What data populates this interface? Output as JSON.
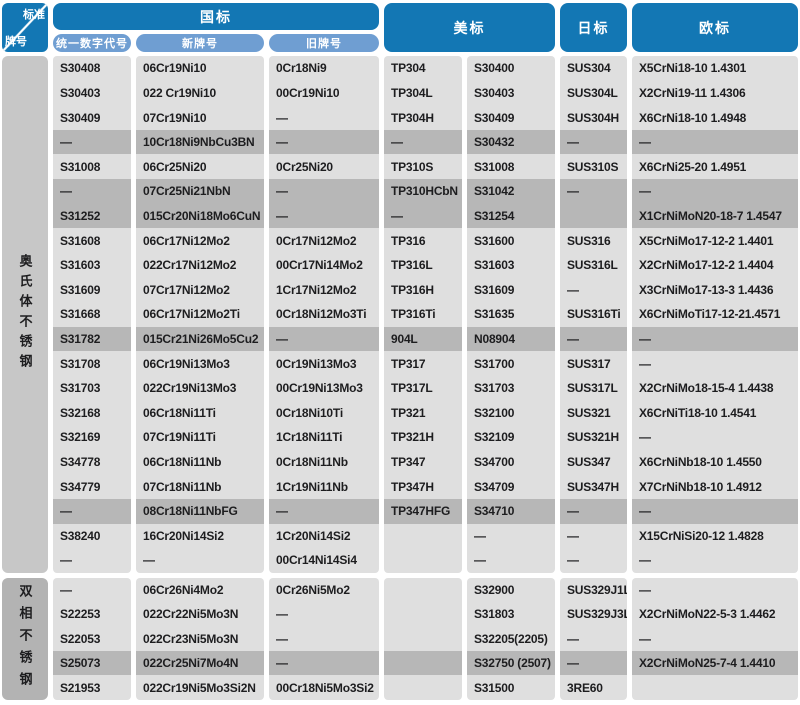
{
  "colors": {
    "header_blue": "#1377b4",
    "pill_blue": "#6f9ed2",
    "cell_light": "#dfdfdf",
    "cell_dark": "#b7b7b7",
    "label_austenitic": "#c7c7c7",
    "label_duplex": "#b3b3b3",
    "text": "#1d1d1f"
  },
  "header": {
    "corner": {
      "top_right": "标准",
      "bottom_left": "牌号"
    },
    "groups": [
      {
        "label": "国标",
        "sub": [
          "统一数字代号",
          "新牌号",
          "旧牌号"
        ]
      },
      {
        "label": "美标"
      },
      {
        "label": "日标"
      },
      {
        "label": "欧标"
      }
    ]
  },
  "sections": [
    {
      "label": "奥氏体不锈钢",
      "rows": [
        {
          "dark": false,
          "cells": [
            "S30408",
            "06Cr19Ni10",
            "0Cr18Ni9",
            "TP304",
            "S30400",
            "SUS304",
            "X5CrNi18-10 1.4301"
          ]
        },
        {
          "dark": false,
          "cells": [
            "S30403",
            "022 Cr19Ni10",
            "00Cr19Ni10",
            "TP304L",
            "S30403",
            "SUS304L",
            "X2CrNi19-11  1.4306"
          ]
        },
        {
          "dark": false,
          "cells": [
            "S30409",
            "07Cr19Ni10",
            "—",
            "TP304H",
            "S30409",
            "SUS304H",
            "X6CrNi18-10  1.4948"
          ]
        },
        {
          "dark": true,
          "cells": [
            "—",
            "10Cr18Ni9NbCu3BN",
            "—",
            "—",
            "S30432",
            "—",
            "—"
          ]
        },
        {
          "dark": false,
          "cells": [
            "S31008",
            "06Cr25Ni20",
            "0Cr25Ni20",
            "TP310S",
            "S31008",
            "SUS310S",
            "X6CrNi25-20 1.4951"
          ]
        },
        {
          "dark": true,
          "cells": [
            "—",
            "07Cr25Ni21NbN",
            "—",
            "TP310HCbN",
            "S31042",
            "—",
            "—"
          ]
        },
        {
          "dark": true,
          "cells": [
            "S31252",
            "015Cr20Ni18Mo6CuN",
            "—",
            "—",
            "S31254",
            "",
            "X1CrNiMoN20-18-7 1.4547"
          ]
        },
        {
          "dark": false,
          "cells": [
            "S31608",
            "06Cr17Ni12Mo2",
            "0Cr17Ni12Mo2",
            "TP316",
            "S31600",
            "SUS316",
            "X5CrNiMo17-12-2 1.4401"
          ]
        },
        {
          "dark": false,
          "cells": [
            "S31603",
            "022Cr17Ni12Mo2",
            "00Cr17Ni14Mo2",
            "TP316L",
            "S31603",
            "SUS316L",
            "X2CrNiMo17-12-2 1.4404"
          ]
        },
        {
          "dark": false,
          "cells": [
            "S31609",
            "07Cr17Ni12Mo2",
            "1Cr17Ni12Mo2",
            "TP316H",
            "S31609",
            "—",
            "X3CrNiMo17-13-3 1.4436"
          ]
        },
        {
          "dark": false,
          "cells": [
            "S31668",
            "06Cr17Ni12Mo2Ti",
            "0Cr18Ni12Mo3Ti",
            "TP316Ti",
            "S31635",
            "SUS316Ti",
            "X6CrNiMoTi17-12-21.4571"
          ]
        },
        {
          "dark": true,
          "cells": [
            "S31782",
            "015Cr21Ni26Mo5Cu2",
            "—",
            "904L",
            "N08904",
            "—",
            "—"
          ]
        },
        {
          "dark": false,
          "cells": [
            "S31708",
            "06Cr19Ni13Mo3",
            "0Cr19Ni13Mo3",
            "TP317",
            "S31700",
            "SUS317",
            "—"
          ]
        },
        {
          "dark": false,
          "cells": [
            "S31703",
            "022Cr19Ni13Mo3",
            "00Cr19Ni13Mo3",
            "TP317L",
            "S31703",
            "SUS317L",
            "X2CrNiMo18-15-4 1.4438"
          ]
        },
        {
          "dark": false,
          "cells": [
            "S32168",
            "06Cr18Ni11Ti",
            "0Cr18Ni10Ti",
            "TP321",
            "S32100",
            "SUS321",
            "X6CrNiTi18-10 1.4541"
          ]
        },
        {
          "dark": false,
          "cells": [
            "S32169",
            "07Cr19Ni11Ti",
            "1Cr18Ni11Ti",
            "TP321H",
            "S32109",
            "SUS321H",
            "—"
          ]
        },
        {
          "dark": false,
          "cells": [
            "S34778",
            "06Cr18Ni11Nb",
            "0Cr18Ni11Nb",
            "TP347",
            "S34700",
            "SUS347",
            "X6CrNiNb18-10 1.4550"
          ]
        },
        {
          "dark": false,
          "cells": [
            "S34779",
            "07Cr18Ni11Nb",
            "1Cr19Ni11Nb",
            "TP347H",
            "S34709",
            "SUS347H",
            "X7CrNiNb18-10 1.4912"
          ]
        },
        {
          "dark": true,
          "cells": [
            "—",
            "08Cr18Ni11NbFG",
            "—",
            "TP347HFG",
            "S34710",
            "—",
            "—"
          ]
        },
        {
          "dark": false,
          "cells": [
            "S38240",
            "16Cr20Ni14Si2",
            "1Cr20Ni14Si2",
            "",
            "—",
            "—",
            "X15CrNiSi20-12 1.4828"
          ]
        },
        {
          "dark": false,
          "cells": [
            "—",
            "—",
            "00Cr14Ni14Si4",
            "",
            "—",
            "—",
            "—"
          ]
        }
      ]
    },
    {
      "label": "双相不锈钢",
      "rows": [
        {
          "dark": false,
          "cells": [
            "—",
            "06Cr26Ni4Mo2",
            "0Cr26Ni5Mo2",
            "",
            "S32900",
            "SUS329J1L",
            "—"
          ]
        },
        {
          "dark": false,
          "cells": [
            "S22253",
            "022Cr22Ni5Mo3N",
            "—",
            "",
            "S31803",
            "SUS329J3L",
            "X2CrNiMoN22-5-3 1.4462"
          ]
        },
        {
          "dark": false,
          "cells": [
            "S22053",
            "022Cr23Ni5Mo3N",
            "—",
            "",
            "S32205(2205)",
            "—",
            "—"
          ]
        },
        {
          "dark": true,
          "cells": [
            "S25073",
            "022Cr25Ni7Mo4N",
            "—",
            "",
            "S32750 (2507)",
            "—",
            "X2CrNiMoN25-7-4 1.4410"
          ]
        },
        {
          "dark": false,
          "cells": [
            "S21953",
            "022Cr19Ni5Mo3Si2N",
            "00Cr18Ni5Mo3Si2",
            "",
            "S31500",
            "3RE60",
            ""
          ]
        }
      ]
    }
  ]
}
